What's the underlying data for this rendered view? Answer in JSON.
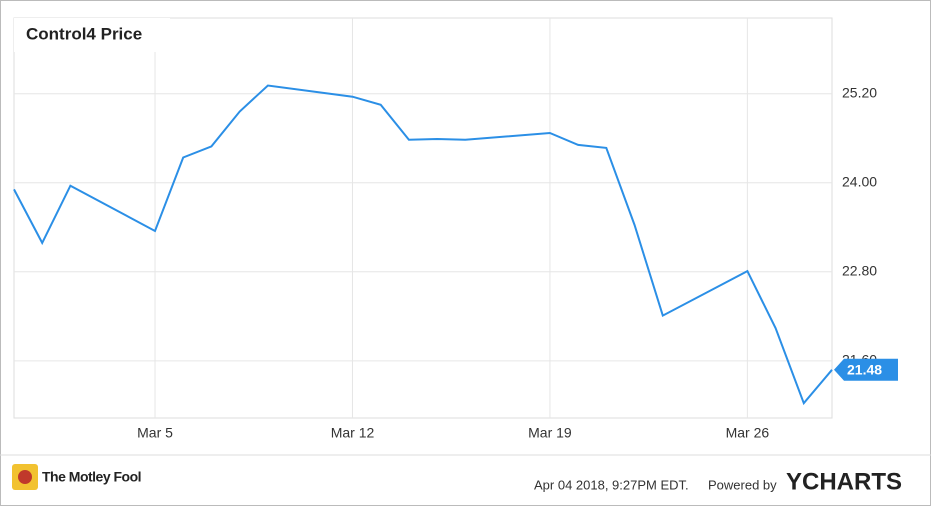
{
  "chart_data": {
    "type": "line",
    "title": "Control4 Price",
    "x": [
      "Feb 28",
      "Mar 1",
      "Mar 2",
      "Mar 5",
      "Mar 6",
      "Mar 7",
      "Mar 8",
      "Mar 9",
      "Mar 12",
      "Mar 13",
      "Mar 14",
      "Mar 15",
      "Mar 16",
      "Mar 19",
      "Mar 20",
      "Mar 21",
      "Mar 22",
      "Mar 23",
      "Mar 26",
      "Mar 27",
      "Mar 28",
      "Mar 29"
    ],
    "series": [
      {
        "name": "Control4 Price",
        "color": "#2b8fe6",
        "values": [
          23.91,
          23.19,
          23.96,
          23.35,
          24.34,
          24.49,
          24.96,
          25.31,
          25.16,
          25.05,
          24.58,
          24.59,
          24.58,
          24.67,
          24.51,
          24.47,
          23.43,
          22.21,
          22.81,
          22.04,
          21.03,
          21.48
        ]
      }
    ],
    "xlim": [
      "Feb 28",
      "Mar 29"
    ],
    "xticks": [
      "Mar 5",
      "Mar 12",
      "Mar 19",
      "Mar 26"
    ],
    "ylim": [
      20.83,
      26.22
    ],
    "yticks": [
      {
        "value": 21.6,
        "label": "21.60"
      },
      {
        "value": 22.8,
        "label": "22.80"
      },
      {
        "value": 24.0,
        "label": "24.00"
      },
      {
        "value": 25.2,
        "label": "25.20"
      }
    ],
    "grid": true
  },
  "footer": {
    "brand": "The Motley Fool",
    "timestamp": "Apr 04 2018, 9:27PM EDT.",
    "powered": "Powered by",
    "provider": "YCHARTS"
  }
}
